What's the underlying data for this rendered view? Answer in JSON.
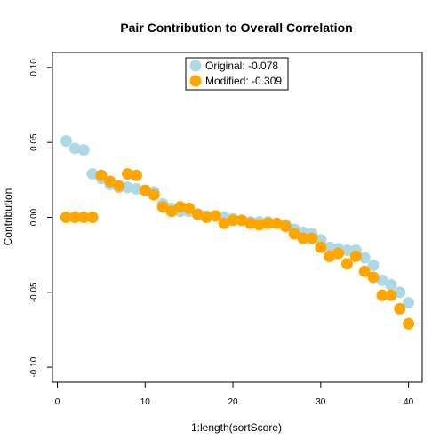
{
  "chart_data": {
    "type": "scatter",
    "title": "Pair Contribution to Overall Correlation",
    "xlabel": "1:length(sortScore)",
    "ylabel": "Contribution",
    "xlim": [
      -0.56,
      41.56
    ],
    "ylim": [
      -0.11,
      0.11
    ],
    "x_ticks": [
      0,
      10,
      20,
      30,
      40
    ],
    "y_ticks": [
      -0.1,
      -0.05,
      0.0,
      0.05,
      0.1
    ],
    "y_tick_labels": [
      "-0.10",
      "-0.05",
      "0.00",
      "0.05",
      "0.10"
    ],
    "x_tick_labels": [
      "0",
      "10",
      "20",
      "30",
      "40"
    ],
    "grid": false,
    "legend_position": "top-center",
    "series": [
      {
        "name": "Original: -0.078",
        "color": "#add8e6",
        "x": [
          1,
          2,
          3,
          4,
          5,
          6,
          7,
          8,
          9,
          10,
          11,
          12,
          13,
          14,
          15,
          16,
          17,
          18,
          19,
          20,
          21,
          22,
          23,
          24,
          25,
          26,
          27,
          28,
          29,
          30,
          31,
          32,
          33,
          34,
          35,
          36,
          37,
          38,
          39,
          40
        ],
        "y": [
          0.051,
          0.046,
          0.045,
          0.029,
          0.026,
          0.022,
          0.02,
          0.02,
          0.019,
          0.018,
          0.017,
          0.009,
          0.006,
          0.004,
          0.004,
          0.002,
          0.001,
          0.001,
          0.0,
          -0.001,
          -0.002,
          -0.003,
          -0.003,
          -0.003,
          -0.004,
          -0.005,
          -0.008,
          -0.01,
          -0.011,
          -0.015,
          -0.02,
          -0.021,
          -0.022,
          -0.022,
          -0.027,
          -0.032,
          -0.042,
          -0.045,
          -0.05,
          -0.057
        ]
      },
      {
        "name": "Modified: -0.309",
        "color": "#ffa500",
        "x": [
          1,
          2,
          3,
          4,
          5,
          6,
          7,
          8,
          9,
          10,
          11,
          12,
          13,
          14,
          15,
          16,
          17,
          18,
          19,
          20,
          21,
          22,
          23,
          24,
          25,
          26,
          27,
          28,
          29,
          30,
          31,
          32,
          33,
          34,
          35,
          36,
          37,
          38,
          39,
          40
        ],
        "y": [
          0.0,
          0.0,
          0.0,
          0.0,
          0.028,
          0.024,
          0.021,
          0.029,
          0.028,
          0.018,
          0.015,
          0.007,
          0.004,
          0.007,
          0.006,
          0.002,
          0.0,
          0.001,
          -0.004,
          -0.002,
          -0.002,
          -0.004,
          -0.005,
          -0.004,
          -0.004,
          -0.006,
          -0.011,
          -0.014,
          -0.014,
          -0.02,
          -0.026,
          -0.024,
          -0.031,
          -0.026,
          -0.036,
          -0.04,
          -0.052,
          -0.052,
          -0.061,
          -0.071
        ]
      }
    ]
  }
}
